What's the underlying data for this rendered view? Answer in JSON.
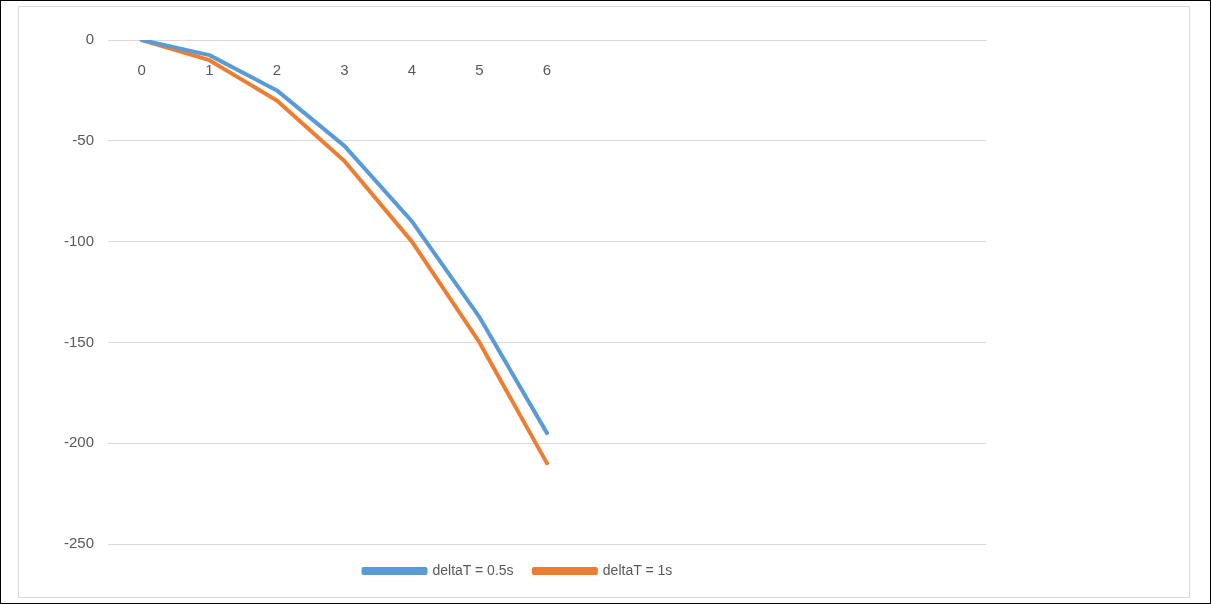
{
  "chart_data": {
    "type": "line",
    "categories": [
      "0",
      "1",
      "2",
      "3",
      "4",
      "5",
      "6",
      null,
      null,
      null,
      null,
      null,
      null
    ],
    "series": [
      {
        "name": "deltaT = 0.5s",
        "color": "#5b9bd5",
        "values": [
          0,
          -7.5,
          -25,
          -52.5,
          -90,
          -137.5,
          -195,
          null,
          null,
          null,
          null,
          null,
          null
        ]
      },
      {
        "name": "deltaT = 1s",
        "color": "#ed7d31",
        "values": [
          0,
          -10,
          -30,
          -60,
          -100,
          -150,
          -210,
          null,
          null,
          null,
          null,
          null,
          null
        ]
      }
    ],
    "ylim": [
      -250,
      0
    ],
    "yticks": [
      -250,
      -200,
      -150,
      -100,
      -50,
      0
    ],
    "grid": "y",
    "legend": "bottom",
    "marker": "none",
    "line_style": "solid"
  }
}
